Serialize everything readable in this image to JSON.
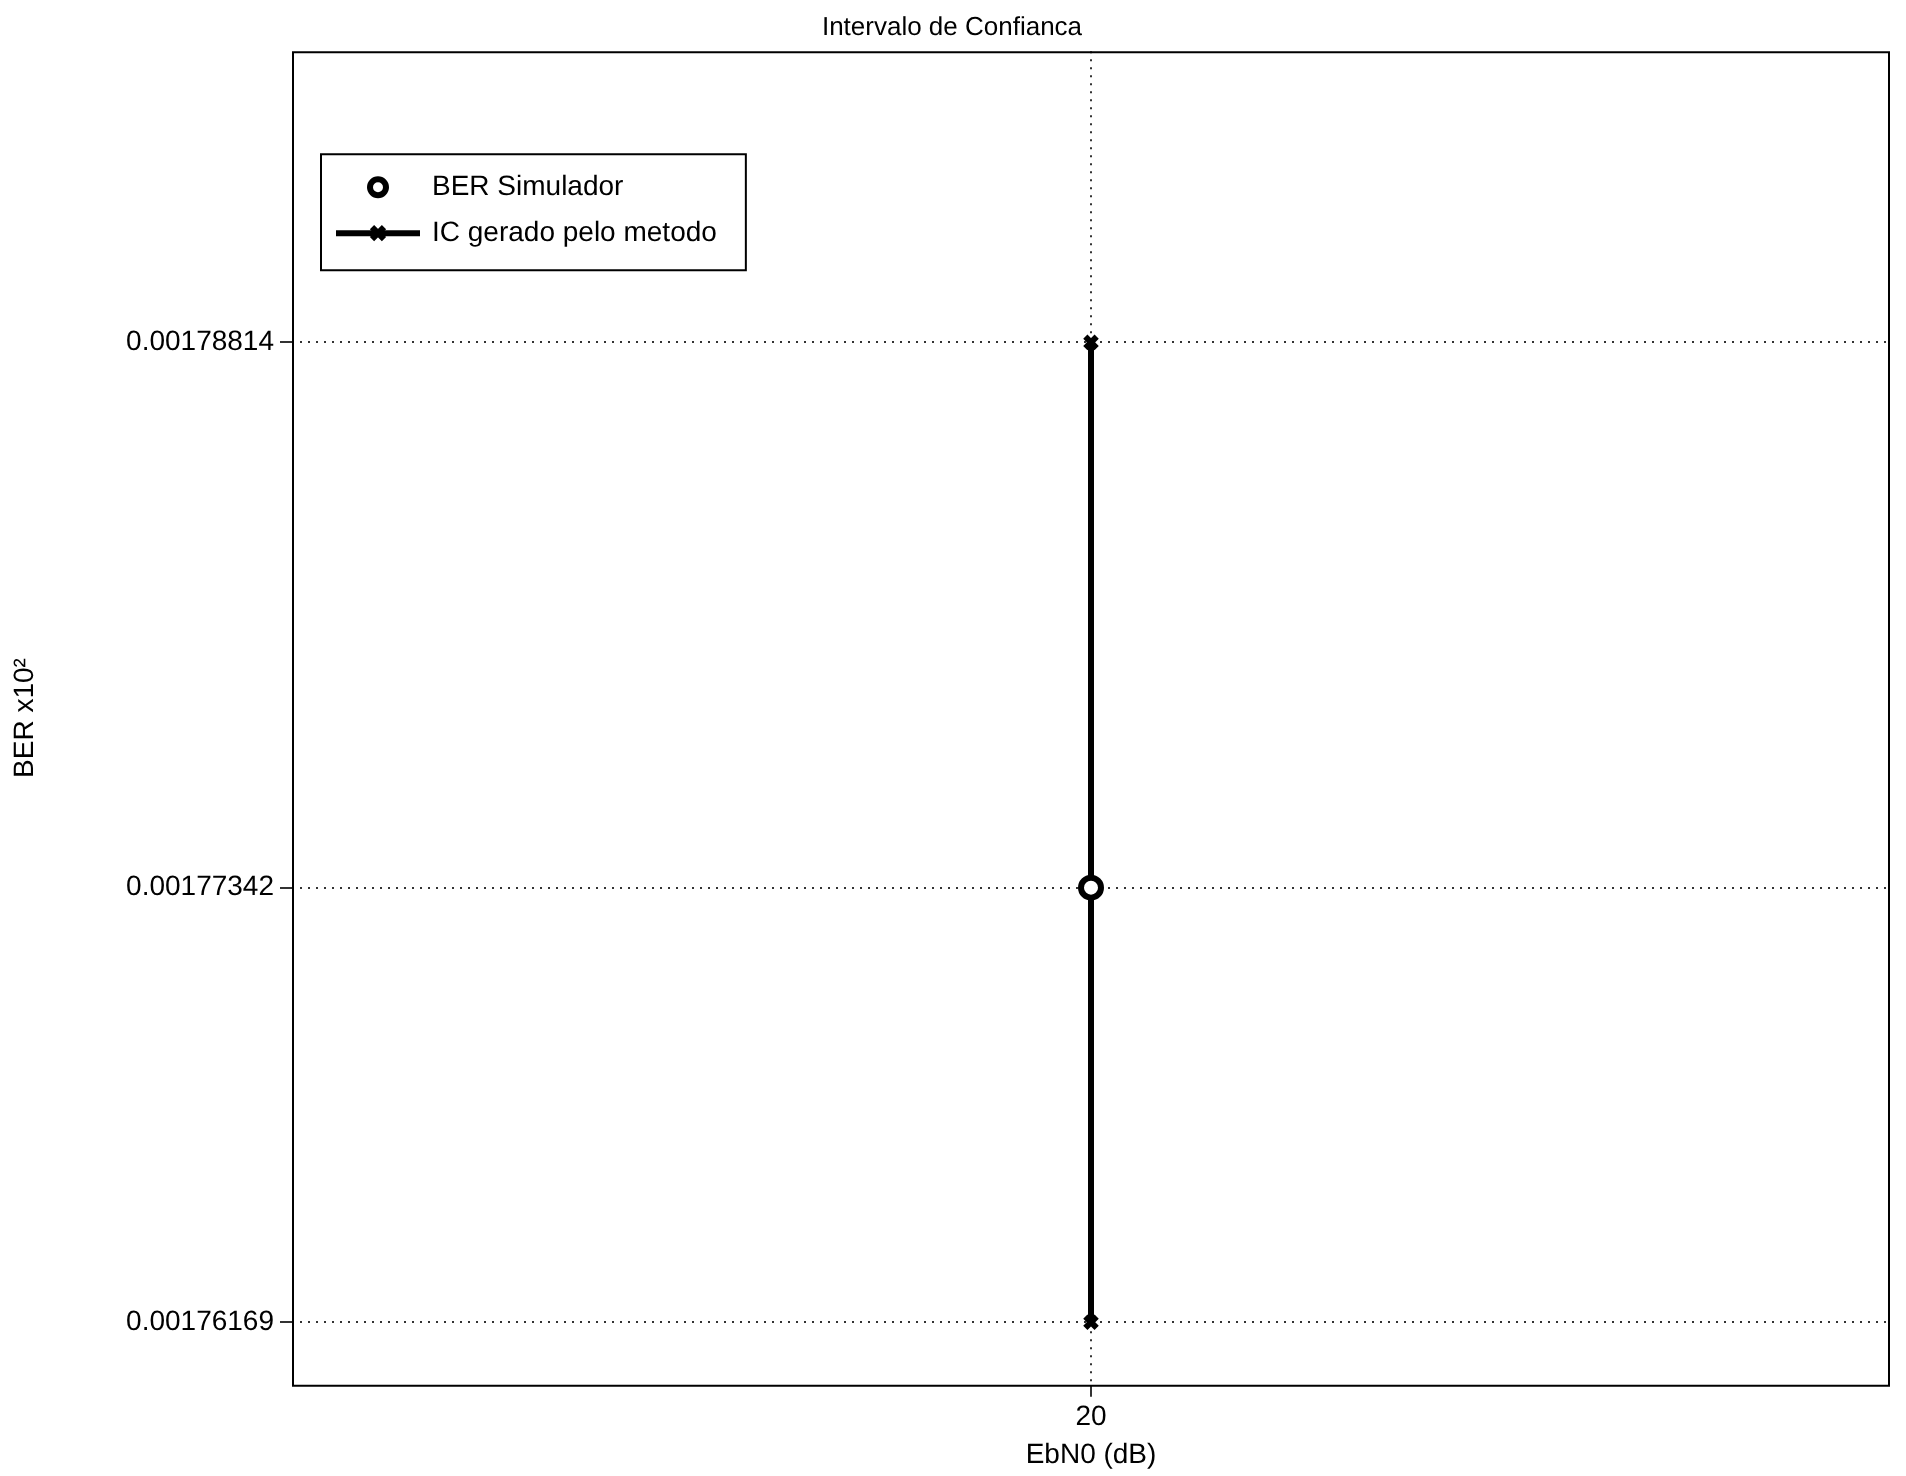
{
  "chart_data": {
    "type": "line",
    "title": "Intervalo de Confianca",
    "xlabel": "EbN0 (dB)",
    "ylabel": "BER x10²",
    "categories": [
      "20"
    ],
    "series": [
      {
        "name": "BER Simulador",
        "type": "scatter",
        "color": "#000000",
        "marker": "circle",
        "x": [
          "20"
        ],
        "values": [
          0.00177342
        ]
      },
      {
        "name": "IC gerado pelo metodo",
        "color": "#000000",
        "marker": "cross",
        "line_style": "solid",
        "x": [
          "20",
          "20"
        ],
        "values": [
          0.00176169,
          0.00178814
        ]
      }
    ],
    "ylim": [
      0.00176,
      0.001796
    ],
    "yticks": [
      0.00176169,
      0.00177342,
      0.00178814
    ],
    "grid": true,
    "legend": "top left"
  }
}
